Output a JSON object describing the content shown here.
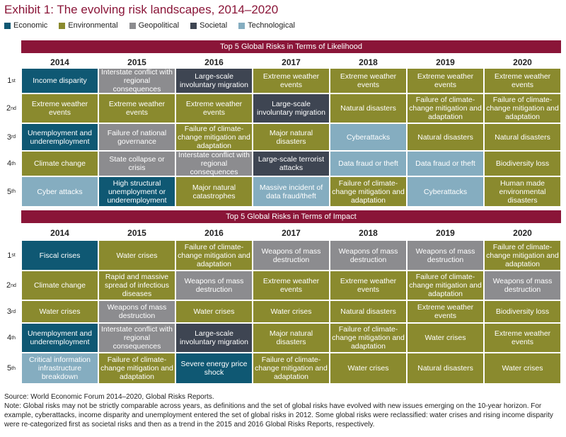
{
  "title": "Exhibit 1: The evolving risk landscapes, 2014–2020",
  "colors": {
    "Economic": "#0f5873",
    "Environmental": "#8a8a2e",
    "Geopolitical": "#8c8c8f",
    "Societal": "#3e4552",
    "Technological": "#85adc0",
    "banner": "#8a1538"
  },
  "chart_data": {
    "type": "table",
    "legend": [
      "Economic",
      "Environmental",
      "Geopolitical",
      "Societal",
      "Technological"
    ],
    "years": [
      "2014",
      "2015",
      "2016",
      "2017",
      "2018",
      "2019",
      "2020"
    ],
    "ranks": [
      {
        "num": "1",
        "suffix": "st"
      },
      {
        "num": "2",
        "suffix": "nd"
      },
      {
        "num": "3",
        "suffix": "rd"
      },
      {
        "num": "4",
        "suffix": "th"
      },
      {
        "num": "5",
        "suffix": "th"
      }
    ],
    "tables": [
      {
        "banner": "Top 5 Global Risks in Terms of Likelihood",
        "rows": [
          [
            {
              "text": "Income disparity",
              "cat": "Economic"
            },
            {
              "text": "Interstate conflict with regional consequences",
              "cat": "Geopolitical"
            },
            {
              "text": "Large-scale involuntary migration",
              "cat": "Societal"
            },
            {
              "text": "Extreme weather events",
              "cat": "Environmental"
            },
            {
              "text": "Extreme weather events",
              "cat": "Environmental"
            },
            {
              "text": "Extreme weather events",
              "cat": "Environmental"
            },
            {
              "text": "Extreme weather events",
              "cat": "Environmental"
            }
          ],
          [
            {
              "text": "Extreme weather events",
              "cat": "Environmental"
            },
            {
              "text": "Extreme weather events",
              "cat": "Environmental"
            },
            {
              "text": "Extreme weather events",
              "cat": "Environmental"
            },
            {
              "text": "Large-scale involuntary migration",
              "cat": "Societal"
            },
            {
              "text": "Natural disasters",
              "cat": "Environmental"
            },
            {
              "text": "Failure of climate-change mitigation and adaptation",
              "cat": "Environmental"
            },
            {
              "text": "Failure of climate-change mitigation and adaptation",
              "cat": "Environmental"
            }
          ],
          [
            {
              "text": "Unemployment and underemployment",
              "cat": "Economic"
            },
            {
              "text": "Failure of national governance",
              "cat": "Geopolitical"
            },
            {
              "text": "Failure of climate-change mitigation and adaptation",
              "cat": "Environmental"
            },
            {
              "text": "Major natural disasters",
              "cat": "Environmental"
            },
            {
              "text": "Cyberattacks",
              "cat": "Technological"
            },
            {
              "text": "Natural disasters",
              "cat": "Environmental"
            },
            {
              "text": "Natural disasters",
              "cat": "Environmental"
            }
          ],
          [
            {
              "text": "Climate change",
              "cat": "Environmental"
            },
            {
              "text": "State collapse or crisis",
              "cat": "Geopolitical"
            },
            {
              "text": "Interstate conflict with regional consequences",
              "cat": "Geopolitical"
            },
            {
              "text": "Large-scale terrorist attacks",
              "cat": "Societal"
            },
            {
              "text": "Data fraud or theft",
              "cat": "Technological"
            },
            {
              "text": "Data fraud or theft",
              "cat": "Technological"
            },
            {
              "text": "Biodiversity loss",
              "cat": "Environmental"
            }
          ],
          [
            {
              "text": "Cyber attacks",
              "cat": "Technological"
            },
            {
              "text": "High structural unemployment or underemployment",
              "cat": "Economic"
            },
            {
              "text": "Major natural catastrophes",
              "cat": "Environmental"
            },
            {
              "text": "Massive incident of data fraud/theft",
              "cat": "Technological"
            },
            {
              "text": "Failure of climate-change mitigation and adaptation",
              "cat": "Environmental"
            },
            {
              "text": "Cyberattacks",
              "cat": "Technological"
            },
            {
              "text": "Human made environmental disasters",
              "cat": "Environmental"
            }
          ]
        ]
      },
      {
        "banner": "Top 5 Global Risks in Terms of Impact",
        "rows": [
          [
            {
              "text": "Fiscal crises",
              "cat": "Economic"
            },
            {
              "text": "Water crises",
              "cat": "Environmental"
            },
            {
              "text": "Failure of climate-change mitigation and adaptation",
              "cat": "Environmental"
            },
            {
              "text": "Weapons of mass destruction",
              "cat": "Geopolitical"
            },
            {
              "text": "Weapons of mass destruction",
              "cat": "Geopolitical"
            },
            {
              "text": "Weapons of mass destruction",
              "cat": "Geopolitical"
            },
            {
              "text": "Failure of climate-change mitigation and adaptation",
              "cat": "Environmental"
            }
          ],
          [
            {
              "text": "Climate change",
              "cat": "Environmental"
            },
            {
              "text": "Rapid and massive spread of infectious diseases",
              "cat": "Environmental"
            },
            {
              "text": "Weapons of mass destruction",
              "cat": "Geopolitical"
            },
            {
              "text": "Extreme weather events",
              "cat": "Environmental"
            },
            {
              "text": "Extreme weather events",
              "cat": "Environmental"
            },
            {
              "text": "Failure of climate-change mitigation and adaptation",
              "cat": "Environmental"
            },
            {
              "text": "Weapons of mass destruction",
              "cat": "Geopolitical"
            }
          ],
          [
            {
              "text": "Water crises",
              "cat": "Environmental"
            },
            {
              "text": "Weapons of mass destruction",
              "cat": "Geopolitical"
            },
            {
              "text": "Water crises",
              "cat": "Environmental"
            },
            {
              "text": "Water crises",
              "cat": "Environmental"
            },
            {
              "text": "Natural disasters",
              "cat": "Environmental"
            },
            {
              "text": "Extreme weather events",
              "cat": "Environmental"
            },
            {
              "text": "Biodiversity loss",
              "cat": "Environmental"
            }
          ],
          [
            {
              "text": "Unemployment and underemployment",
              "cat": "Economic"
            },
            {
              "text": "Interstate conflict with regional consequences",
              "cat": "Geopolitical"
            },
            {
              "text": "Large-scale involuntary migration",
              "cat": "Societal"
            },
            {
              "text": "Major natural disasters",
              "cat": "Environmental"
            },
            {
              "text": "Failure of climate-change mitigation and adaptation",
              "cat": "Environmental"
            },
            {
              "text": "Water crises",
              "cat": "Environmental"
            },
            {
              "text": "Extreme weather events",
              "cat": "Environmental"
            }
          ],
          [
            {
              "text": "Critical information infrastructure breakdown",
              "cat": "Technological"
            },
            {
              "text": "Failure of climate-change mitigation and adaptation",
              "cat": "Environmental"
            },
            {
              "text": "Severe energy price shock",
              "cat": "Economic"
            },
            {
              "text": "Failure of climate-change mitigation and adaptation",
              "cat": "Environmental"
            },
            {
              "text": "Water crises",
              "cat": "Environmental"
            },
            {
              "text": "Natural disasters",
              "cat": "Environmental"
            },
            {
              "text": "Water crises",
              "cat": "Environmental"
            }
          ]
        ]
      }
    ]
  },
  "notes": {
    "source": "Source: World Economic Forum 2014–2020, Global Risks Reports.",
    "note": "Note: Global risks may not be strictly comparable across years, as definitions and the set of global risks have evolved with new issues emerging on the 10-year horizon. For example, cyberattacks, income disparity and unemployment entered the set of global risks in 2012. Some global risks were reclassified: water crises and rising income disparity were re-categorized first as societal risks and then as a trend in the 2015 and 2016 Global Risks Reports, respectively."
  }
}
